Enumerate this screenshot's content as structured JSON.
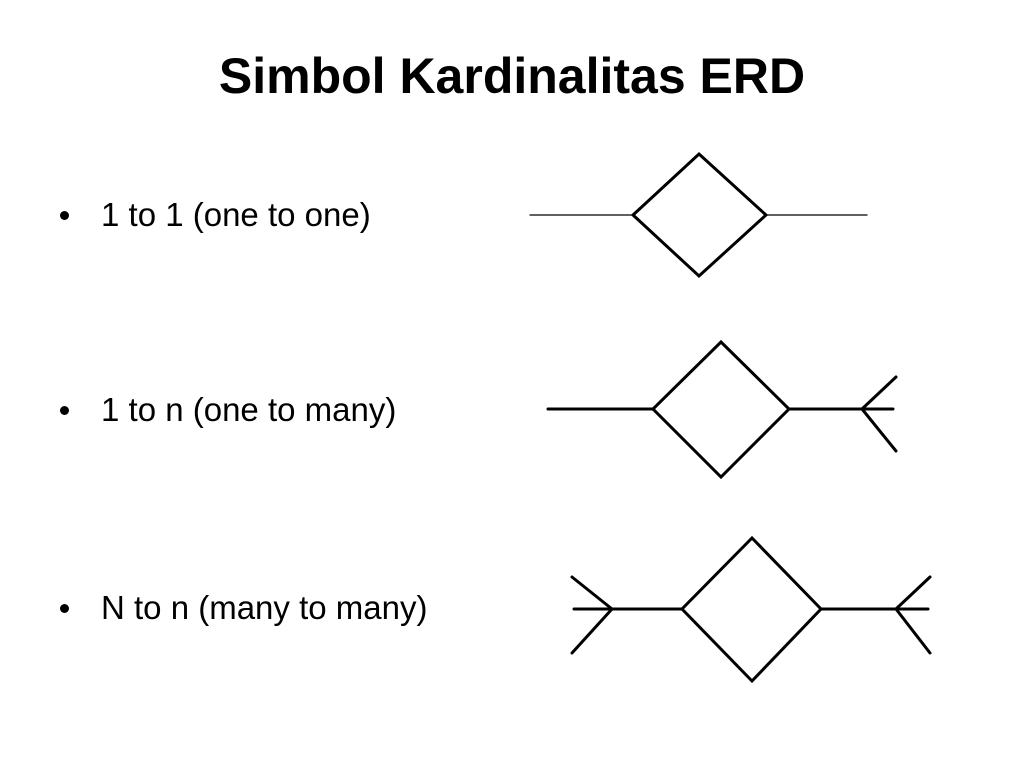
{
  "slide": {
    "title": "Simbol Kardinalitas ERD"
  },
  "bullets": [
    {
      "label": "1 to 1 (one to one)",
      "symbol": "one-to-one"
    },
    {
      "label": "1 to n (one to many)",
      "symbol": "one-to-many"
    },
    {
      "label": "N to n (many to many)",
      "symbol": "many-to-many"
    }
  ],
  "colors": {
    "text": "#000000",
    "background": "#ffffff",
    "stroke": "#000000"
  }
}
